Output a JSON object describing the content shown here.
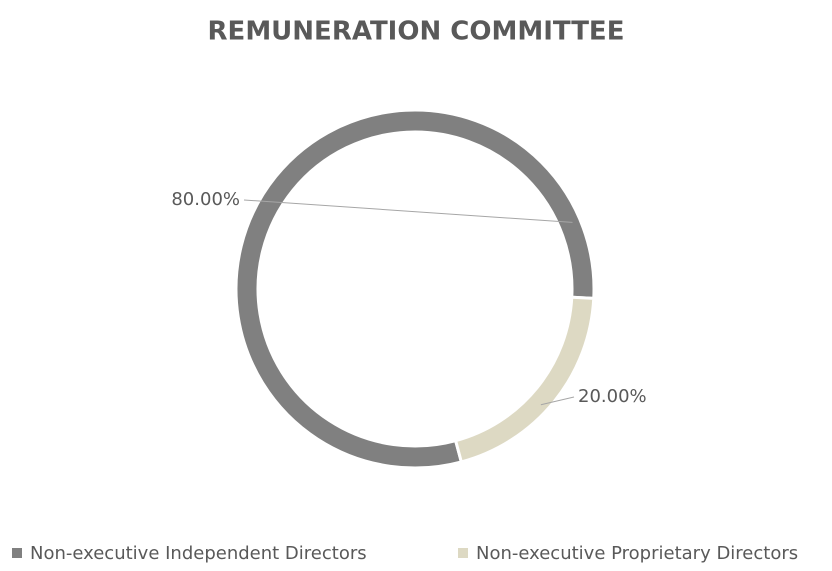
{
  "chart_data": {
    "type": "donut",
    "title": "REMUNERATION COMMITTEE",
    "categories": [
      "Non-executive Independent Directors",
      "Non-executive Proprietary Directors"
    ],
    "values": [
      80,
      20
    ],
    "value_labels": [
      "80.00%",
      "20.00%"
    ],
    "colors": [
      "#808080",
      "#ddd9c3"
    ],
    "legend": "bottom"
  }
}
